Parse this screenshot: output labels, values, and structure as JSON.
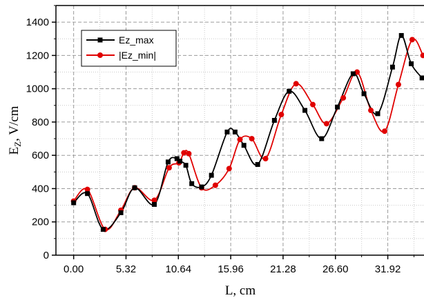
{
  "chart_data": {
    "type": "line",
    "title": "",
    "xlabel": "L, cm",
    "ylabel": "E",
    "ylabel_subscript": "Z",
    "ylabel_units": ", V/cm",
    "xlim": [
      -1.8,
      35.6
    ],
    "ylim": [
      0,
      1500
    ],
    "x_ticks": [
      0.0,
      5.32,
      10.64,
      15.96,
      21.28,
      26.6,
      31.92
    ],
    "x_tick_labels": [
      "0.00",
      "5.32",
      "10.64",
      "15.96",
      "21.28",
      "26.60",
      "31.92"
    ],
    "y_ticks": [
      0,
      200,
      400,
      600,
      800,
      1000,
      1200,
      1400
    ],
    "y_tick_labels": [
      "0",
      "200",
      "400",
      "600",
      "800",
      "1000",
      "1200",
      "1400"
    ],
    "grid": true,
    "legend_position": "top-left",
    "series": [
      {
        "name": "Ez_max",
        "color": "#000000",
        "marker": "square",
        "x": [
          0.0,
          1.4,
          3.0,
          4.8,
          6.2,
          8.2,
          9.6,
          10.5,
          10.8,
          11.4,
          12.0,
          13.0,
          14.0,
          15.6,
          16.4,
          17.3,
          18.7,
          20.4,
          21.9,
          23.5,
          25.2,
          26.8,
          28.4,
          29.5,
          30.9,
          32.4,
          33.3,
          34.3,
          35.4
        ],
        "y": [
          315,
          370,
          155,
          255,
          405,
          305,
          560,
          580,
          565,
          540,
          430,
          410,
          480,
          740,
          740,
          660,
          545,
          810,
          985,
          870,
          700,
          890,
          1090,
          970,
          850,
          1130,
          1320,
          1150,
          1065
        ]
      },
      {
        "name": "|Ez_min|",
        "color": "#e00000",
        "marker": "circle",
        "x": [
          0.0,
          1.4,
          3.2,
          4.8,
          6.2,
          8.2,
          9.7,
          10.7,
          11.2,
          11.7,
          13.0,
          14.4,
          15.8,
          16.9,
          18.1,
          19.5,
          21.1,
          22.6,
          24.3,
          25.7,
          27.4,
          28.8,
          30.2,
          31.6,
          33.0,
          34.4,
          35.5
        ],
        "y": [
          325,
          395,
          155,
          270,
          405,
          330,
          525,
          555,
          615,
          610,
          405,
          420,
          520,
          695,
          700,
          580,
          845,
          1030,
          905,
          790,
          945,
          1100,
          870,
          745,
          1025,
          1295,
          1200
        ]
      }
    ]
  }
}
